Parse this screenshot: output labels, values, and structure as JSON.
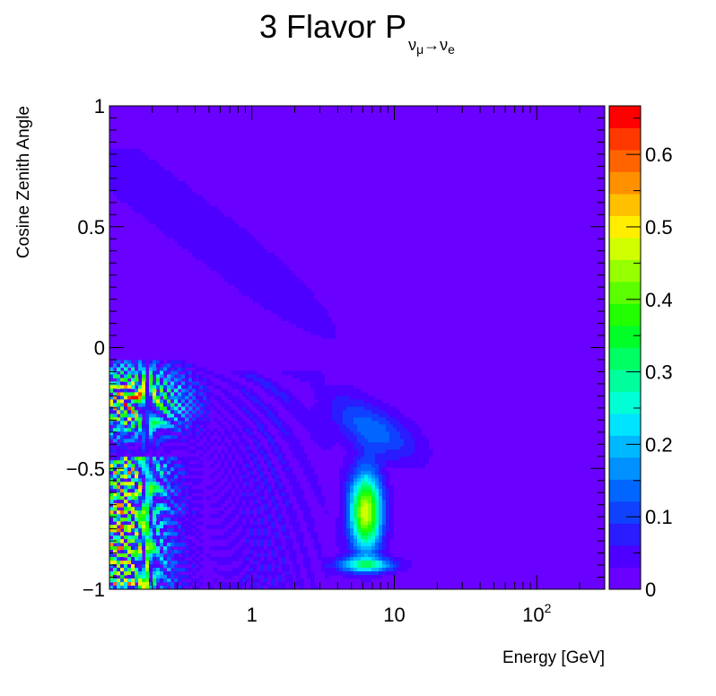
{
  "chart_data": {
    "type": "heatmap",
    "title": {
      "prefix": "3 Flavor P",
      "subscript_from": "ν",
      "subscript_from_sub": "μ",
      "arrow": "→",
      "subscript_to": "ν",
      "subscript_to_sub": "e"
    },
    "xlabel": "Energy [GeV]",
    "ylabel": "Cosine Zenith Angle",
    "x_scale": "log",
    "xlim": [
      0.1,
      300
    ],
    "ylim": [
      -1,
      1
    ],
    "zlim": [
      0,
      0.667
    ],
    "grid": false,
    "x_tick_labels": [
      {
        "value": 1,
        "label": "1",
        "sup": ""
      },
      {
        "value": 10,
        "label": "10",
        "sup": ""
      },
      {
        "value": 100,
        "label": "10",
        "sup": "2"
      }
    ],
    "y_tick_labels": [
      {
        "value": -1,
        "label": "−1"
      },
      {
        "value": -0.5,
        "label": "−0.5"
      },
      {
        "value": 0,
        "label": "0"
      },
      {
        "value": 0.5,
        "label": "0.5"
      },
      {
        "value": 1,
        "label": "1"
      }
    ],
    "z_tick_labels": [
      {
        "value": 0,
        "label": "0"
      },
      {
        "value": 0.1,
        "label": "0.1"
      },
      {
        "value": 0.2,
        "label": "0.2"
      },
      {
        "value": 0.3,
        "label": "0.3"
      },
      {
        "value": 0.4,
        "label": "0.4"
      },
      {
        "value": 0.5,
        "label": "0.5"
      },
      {
        "value": 0.6,
        "label": "0.6"
      }
    ],
    "palette": [
      "#6a00ff",
      "#4d00ff",
      "#2a1cff",
      "#1041ff",
      "#0066ff",
      "#0090ff",
      "#00b8ff",
      "#00e4ff",
      "#00ffd5",
      "#00ff9c",
      "#00ff62",
      "#00ff28",
      "#22ff00",
      "#5cff00",
      "#96ff00",
      "#d0ff00",
      "#ffee00",
      "#ffc000",
      "#ff9000",
      "#ff6400",
      "#ff3800",
      "#ff0000"
    ],
    "background_value": 0.01,
    "features": [
      {
        "region": "upper-left band (cosθ 0.8 to 0, E < 10 GeV)",
        "peak": 0.06
      },
      {
        "region": "fast oscillations (cosθ -0.1 to -0.45, E 0.1–0.5 GeV)",
        "peak": 0.66
      },
      {
        "region": "core oscillations (cosθ -0.5 to -1, E 0.1–0.4 GeV)",
        "peak": 0.66
      },
      {
        "region": "MSW resonance (cosθ -0.45 to -0.85, E 5–8 GeV)",
        "peak": 0.48
      },
      {
        "region": "arc (cosθ -0.2 to -0.45, E 3–20 GeV)",
        "peak": 0.15
      }
    ]
  }
}
